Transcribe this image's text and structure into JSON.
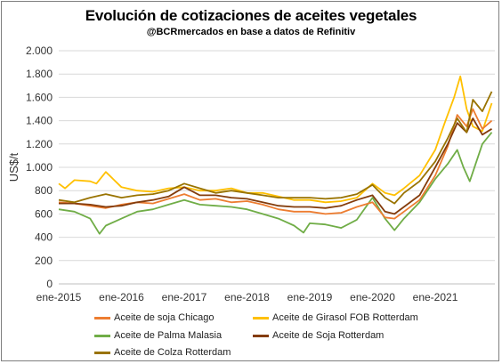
{
  "header": {
    "title": "Evolución de cotizaciones de aceites vegetales",
    "subtitle": "@BCRmercados  en base a datos de Refinitiv"
  },
  "chart_data": {
    "type": "line",
    "title": "Evolución de cotizaciones de aceites vegetales",
    "subtitle": "@BCRmercados  en base a datos de Refinitiv",
    "xlabel": "",
    "ylabel": "US$/t",
    "ylim": [
      0,
      2000
    ],
    "yticks": [
      0,
      200,
      400,
      600,
      800,
      1000,
      1200,
      1400,
      1600,
      1800,
      2000
    ],
    "ytick_labels": [
      "0",
      "200",
      "400",
      "600",
      "800",
      "1.000",
      "1.200",
      "1.400",
      "1.600",
      "1.800",
      "2.000"
    ],
    "xlim": [
      2015.0,
      2021.95
    ],
    "xticks": [
      2015,
      2016,
      2017,
      2018,
      2019,
      2020,
      2021
    ],
    "xtick_labels": [
      "ene-2015",
      "ene-2016",
      "ene-2017",
      "ene-2018",
      "ene-2019",
      "ene-2020",
      "ene-2021"
    ],
    "grid": "horizontal",
    "legend_position": "bottom",
    "series": [
      {
        "name": "Aceite de soja Chicago",
        "color": "#ED7D31",
        "x": [
          2015.0,
          2015.25,
          2015.5,
          2015.75,
          2016.0,
          2016.25,
          2016.5,
          2016.75,
          2017.0,
          2017.25,
          2017.5,
          2017.75,
          2018.0,
          2018.25,
          2018.5,
          2018.75,
          2019.0,
          2019.25,
          2019.5,
          2019.75,
          2020.0,
          2020.2,
          2020.35,
          2020.5,
          2020.75,
          2021.0,
          2021.2,
          2021.35,
          2021.5,
          2021.6,
          2021.75,
          2021.9
        ],
        "y": [
          700,
          690,
          670,
          650,
          680,
          700,
          690,
          730,
          770,
          720,
          730,
          700,
          710,
          680,
          640,
          620,
          620,
          600,
          610,
          660,
          700,
          570,
          560,
          620,
          720,
          930,
          1180,
          1450,
          1350,
          1500,
          1330,
          1400
        ]
      },
      {
        "name": "Aceite de Girasol FOB Rotterdam",
        "color": "#FFC000",
        "x": [
          2015.0,
          2015.1,
          2015.25,
          2015.5,
          2015.6,
          2015.75,
          2016.0,
          2016.25,
          2016.5,
          2016.75,
          2017.0,
          2017.25,
          2017.5,
          2017.75,
          2018.0,
          2018.25,
          2018.5,
          2018.75,
          2019.0,
          2019.25,
          2019.5,
          2019.75,
          2020.0,
          2020.2,
          2020.35,
          2020.5,
          2020.75,
          2021.0,
          2021.15,
          2021.3,
          2021.4,
          2021.5,
          2021.6,
          2021.75,
          2021.9
        ],
        "y": [
          860,
          820,
          890,
          880,
          860,
          960,
          830,
          800,
          790,
          820,
          830,
          800,
          800,
          820,
          780,
          780,
          750,
          720,
          720,
          700,
          710,
          740,
          860,
          780,
          760,
          820,
          930,
          1150,
          1380,
          1600,
          1780,
          1500,
          1350,
          1310,
          1550
        ]
      },
      {
        "name": "Aceite de Palma Malasia",
        "color": "#70AD47",
        "x": [
          2015.0,
          2015.25,
          2015.5,
          2015.65,
          2015.75,
          2016.0,
          2016.25,
          2016.5,
          2016.75,
          2017.0,
          2017.25,
          2017.5,
          2017.75,
          2018.0,
          2018.25,
          2018.5,
          2018.75,
          2018.9,
          2019.0,
          2019.25,
          2019.5,
          2019.75,
          2020.0,
          2020.2,
          2020.35,
          2020.5,
          2020.75,
          2021.0,
          2021.2,
          2021.35,
          2021.45,
          2021.55,
          2021.75,
          2021.9
        ],
        "y": [
          640,
          620,
          560,
          430,
          500,
          560,
          620,
          640,
          680,
          720,
          680,
          670,
          660,
          640,
          600,
          560,
          500,
          440,
          520,
          510,
          480,
          550,
          740,
          560,
          460,
          560,
          700,
          900,
          1030,
          1150,
          1000,
          880,
          1200,
          1300
        ]
      },
      {
        "name": "Aceite de Soja Rotterdam",
        "color": "#843C0C",
        "x": [
          2015.0,
          2015.25,
          2015.5,
          2015.75,
          2016.0,
          2016.25,
          2016.5,
          2016.75,
          2017.0,
          2017.25,
          2017.5,
          2017.75,
          2018.0,
          2018.25,
          2018.5,
          2018.75,
          2019.0,
          2019.25,
          2019.5,
          2019.75,
          2020.0,
          2020.2,
          2020.35,
          2020.5,
          2020.75,
          2021.0,
          2021.2,
          2021.35,
          2021.5,
          2021.6,
          2021.75,
          2021.9
        ],
        "y": [
          690,
          690,
          680,
          660,
          670,
          700,
          720,
          750,
          830,
          760,
          760,
          740,
          730,
          700,
          670,
          660,
          660,
          650,
          670,
          720,
          760,
          620,
          600,
          660,
          760,
          1000,
          1200,
          1380,
          1300,
          1420,
          1280,
          1330
        ]
      },
      {
        "name": "Aceite de Colza Rotterdam",
        "color": "#997300",
        "x": [
          2015.0,
          2015.25,
          2015.5,
          2015.75,
          2016.0,
          2016.25,
          2016.5,
          2016.75,
          2017.0,
          2017.25,
          2017.5,
          2017.75,
          2018.0,
          2018.25,
          2018.5,
          2018.75,
          2019.0,
          2019.25,
          2019.5,
          2019.75,
          2020.0,
          2020.2,
          2020.35,
          2020.5,
          2020.75,
          2021.0,
          2021.2,
          2021.35,
          2021.5,
          2021.6,
          2021.75,
          2021.9
        ],
        "y": [
          720,
          700,
          740,
          770,
          740,
          760,
          770,
          800,
          860,
          820,
          780,
          800,
          780,
          760,
          740,
          740,
          740,
          730,
          740,
          770,
          850,
          740,
          690,
          780,
          880,
          1050,
          1250,
          1420,
          1300,
          1580,
          1480,
          1650
        ]
      }
    ]
  }
}
